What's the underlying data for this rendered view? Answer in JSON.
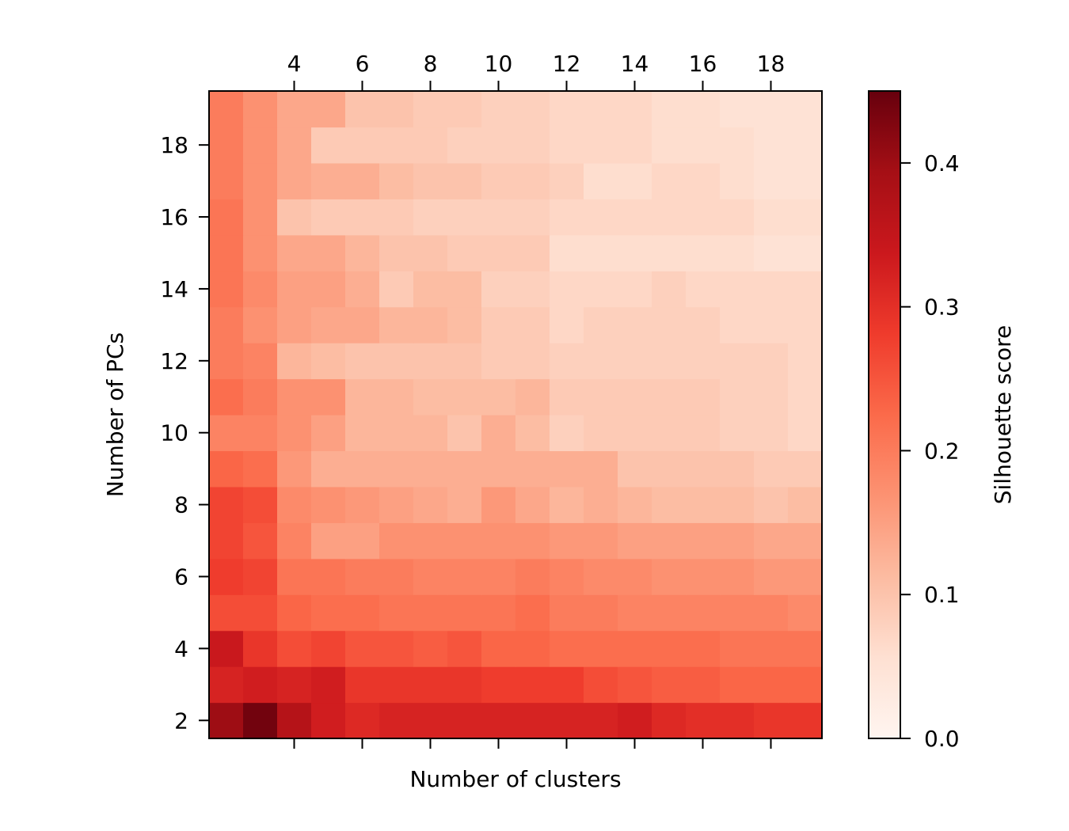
{
  "chart_data": {
    "type": "heatmap",
    "title": "",
    "xlabel": "Number of clusters",
    "ylabel": "Number of PCs",
    "colorbar_label": "Silhouette score",
    "colormap": "Reds",
    "x": [
      2,
      3,
      4,
      5,
      6,
      7,
      8,
      9,
      10,
      11,
      12,
      13,
      14,
      15,
      16,
      17,
      18,
      19
    ],
    "y": [
      2,
      3,
      4,
      5,
      6,
      7,
      8,
      9,
      10,
      11,
      12,
      13,
      14,
      15,
      16,
      17,
      18,
      19
    ],
    "x_ticks": [
      "4",
      "6",
      "8",
      "10",
      "12",
      "14",
      "16",
      "18"
    ],
    "y_ticks": [
      "2",
      "4",
      "6",
      "8",
      "10",
      "12",
      "14",
      "16",
      "18"
    ],
    "colorbar_ticks": [
      "0.0",
      "0.1",
      "0.2",
      "0.3",
      "0.4"
    ],
    "vmin": 0.0,
    "vmax": 0.45,
    "x_axis_position": "top",
    "values": [
      [
        0.4,
        0.44,
        0.37,
        0.33,
        0.31,
        0.32,
        0.32,
        0.32,
        0.32,
        0.32,
        0.32,
        0.32,
        0.33,
        0.31,
        0.3,
        0.3,
        0.29,
        0.29
      ],
      [
        0.32,
        0.33,
        0.32,
        0.33,
        0.29,
        0.29,
        0.29,
        0.29,
        0.28,
        0.28,
        0.28,
        0.26,
        0.25,
        0.24,
        0.24,
        0.23,
        0.23,
        0.23
      ],
      [
        0.34,
        0.29,
        0.26,
        0.27,
        0.25,
        0.25,
        0.24,
        0.25,
        0.23,
        0.23,
        0.22,
        0.22,
        0.22,
        0.22,
        0.22,
        0.21,
        0.21,
        0.21
      ],
      [
        0.26,
        0.26,
        0.23,
        0.22,
        0.22,
        0.21,
        0.21,
        0.21,
        0.21,
        0.22,
        0.2,
        0.2,
        0.19,
        0.19,
        0.19,
        0.19,
        0.19,
        0.18
      ],
      [
        0.28,
        0.27,
        0.21,
        0.21,
        0.2,
        0.2,
        0.19,
        0.19,
        0.19,
        0.2,
        0.19,
        0.18,
        0.18,
        0.17,
        0.17,
        0.17,
        0.16,
        0.16
      ],
      [
        0.27,
        0.25,
        0.19,
        0.15,
        0.15,
        0.17,
        0.17,
        0.17,
        0.17,
        0.17,
        0.16,
        0.16,
        0.15,
        0.15,
        0.15,
        0.15,
        0.14,
        0.14
      ],
      [
        0.27,
        0.26,
        0.18,
        0.17,
        0.16,
        0.15,
        0.14,
        0.13,
        0.16,
        0.14,
        0.12,
        0.13,
        0.12,
        0.11,
        0.11,
        0.11,
        0.1,
        0.11
      ],
      [
        0.23,
        0.22,
        0.16,
        0.13,
        0.13,
        0.13,
        0.13,
        0.13,
        0.13,
        0.13,
        0.13,
        0.13,
        0.1,
        0.1,
        0.1,
        0.1,
        0.09,
        0.09
      ],
      [
        0.19,
        0.19,
        0.17,
        0.15,
        0.12,
        0.12,
        0.12,
        0.1,
        0.13,
        0.11,
        0.08,
        0.09,
        0.09,
        0.09,
        0.09,
        0.08,
        0.08,
        0.07
      ],
      [
        0.22,
        0.2,
        0.17,
        0.17,
        0.12,
        0.12,
        0.11,
        0.11,
        0.11,
        0.12,
        0.09,
        0.09,
        0.09,
        0.09,
        0.09,
        0.08,
        0.08,
        0.07
      ],
      [
        0.2,
        0.19,
        0.12,
        0.11,
        0.1,
        0.1,
        0.1,
        0.1,
        0.09,
        0.09,
        0.08,
        0.08,
        0.08,
        0.08,
        0.08,
        0.08,
        0.08,
        0.07
      ],
      [
        0.2,
        0.17,
        0.15,
        0.14,
        0.14,
        0.12,
        0.12,
        0.11,
        0.09,
        0.09,
        0.07,
        0.08,
        0.08,
        0.08,
        0.08,
        0.07,
        0.07,
        0.07
      ],
      [
        0.21,
        0.18,
        0.15,
        0.15,
        0.13,
        0.09,
        0.11,
        0.11,
        0.08,
        0.08,
        0.07,
        0.07,
        0.07,
        0.08,
        0.07,
        0.07,
        0.07,
        0.07
      ],
      [
        0.21,
        0.17,
        0.14,
        0.14,
        0.12,
        0.1,
        0.1,
        0.09,
        0.09,
        0.09,
        0.06,
        0.06,
        0.06,
        0.06,
        0.06,
        0.06,
        0.05,
        0.05
      ],
      [
        0.21,
        0.17,
        0.1,
        0.09,
        0.09,
        0.09,
        0.08,
        0.08,
        0.08,
        0.08,
        0.07,
        0.07,
        0.07,
        0.07,
        0.07,
        0.07,
        0.06,
        0.06
      ],
      [
        0.2,
        0.17,
        0.14,
        0.13,
        0.13,
        0.11,
        0.1,
        0.1,
        0.09,
        0.09,
        0.08,
        0.06,
        0.06,
        0.07,
        0.07,
        0.06,
        0.05,
        0.05
      ],
      [
        0.2,
        0.17,
        0.14,
        0.09,
        0.09,
        0.09,
        0.09,
        0.08,
        0.08,
        0.08,
        0.07,
        0.07,
        0.07,
        0.06,
        0.06,
        0.06,
        0.05,
        0.05
      ],
      [
        0.2,
        0.17,
        0.14,
        0.14,
        0.1,
        0.1,
        0.09,
        0.09,
        0.08,
        0.08,
        0.07,
        0.07,
        0.07,
        0.06,
        0.06,
        0.05,
        0.05,
        0.05
      ]
    ]
  }
}
